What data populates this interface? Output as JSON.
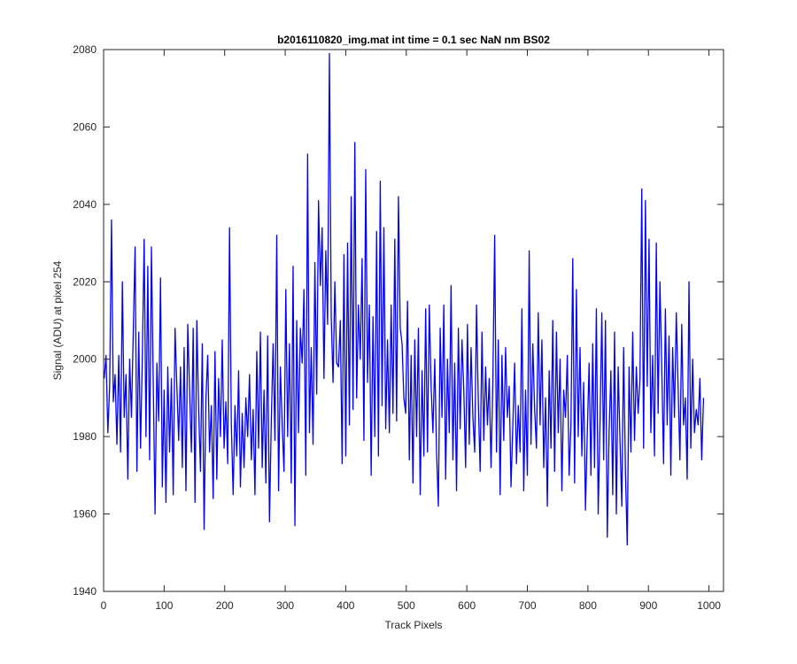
{
  "chart_data": {
    "type": "line",
    "title": "b2016110820_img.mat int time = 0.1 sec  NaN nm BS02",
    "xlabel": "Track Pixels",
    "ylabel": "Signal (ADU) at pixel 254",
    "xlim": [
      0,
      1024
    ],
    "ylim": [
      1940,
      2080
    ],
    "xticks": [
      0,
      100,
      200,
      300,
      400,
      500,
      600,
      700,
      800,
      900,
      1000
    ],
    "yticks": [
      1940,
      1960,
      1980,
      2000,
      2020,
      2040,
      2060,
      2080
    ],
    "grid": false,
    "legend": "none",
    "line_color": "#0000ff",
    "series": [
      {
        "x_start": 1,
        "x_step": 3,
        "values": [
          1995,
          2001,
          1981,
          1993,
          2036,
          1989,
          1996,
          1978,
          2001,
          1976,
          2020,
          1985,
          1996,
          1969,
          2000,
          1985,
          2007,
          2029,
          1971,
          2007,
          1977,
          2001,
          2031,
          1980,
          2024,
          1974,
          2029,
          1994,
          1960,
          1999,
          1984,
          2021,
          1967,
          1992,
          1963,
          1998,
          1976,
          1995,
          1965,
          2008,
          1993,
          1979,
          1998,
          1972,
          2003,
          1966,
          2009,
          1992,
          1976,
          2008,
          1963,
          2010,
          1987,
          1971,
          2004,
          1956,
          1990,
          2001,
          1976,
          1988,
          1964,
          2002,
          1969,
          1995,
          1980,
          2005,
          1977,
          1989,
          1973,
          2034,
          1983,
          1965,
          1988,
          1975,
          1997,
          1967,
          1986,
          1972,
          1990,
          1980,
          1996,
          1974,
          1987,
          1965,
          2002,
          1977,
          2007,
          1972,
          1992,
          1968,
          2006,
          1958,
          1984,
          2004,
          1979,
          2032,
          1966,
          1998,
          1983,
          1971,
          2018,
          1980,
          2004,
          1968,
          2024,
          1957,
          2010,
          1981,
          2008,
          1999,
          2018,
          1970,
          2053,
          1981,
          2003,
          1978,
          2025,
          1991,
          2041,
          2019,
          2034,
          1995,
          2028,
          2009,
          2079,
          2011,
          1994,
          2020,
          1999,
          1998,
          2010,
          1973,
          2027,
          1975,
          2030,
          1983,
          2042,
          1987,
          2056,
          1990,
          2014,
          2000,
          2026,
          1979,
          2049,
          1994,
          2014,
          1970,
          2011,
          1980,
          2033,
          1975,
          2046,
          1988,
          2034,
          1982,
          2005,
          1981,
          2014,
          1986,
          2031,
          1984,
          2042,
          2008,
          2004,
          1990,
          1986,
          2015,
          1974,
          2001,
          1968,
          2005,
          1980,
          2008,
          1965,
          1997,
          1975,
          2013,
          1976,
          2014,
          1993,
          1981,
          2000,
          1976,
          1962,
          2008,
          1985,
          2014,
          1969,
          2000,
          1981,
          2019,
          1974,
          1999,
          1966,
          2008,
          1982,
          2005,
          1992,
          1972,
          2009,
          1978,
          2003,
          1985,
          1976,
          2014,
          1989,
          1971,
          2007,
          1979,
          1998,
          1983,
          1995,
          1972,
          1994,
          2032,
          1976,
          2005,
          1965,
          2001,
          1979,
          2003,
          1985,
          1993,
          1967,
          1983,
          1999,
          1973,
          1988,
          1976,
          2013,
          1966,
          1992,
          1970,
          2028,
          1978,
          2004,
          1987,
          1977,
          2012,
          1983,
          2005,
          1972,
          1990,
          1962,
          1997,
          1977,
          2010,
          1971,
          2007,
          1981,
          2000,
          1966,
          1992,
          1985,
          2001,
          1970,
          1983,
          2026,
          1968,
          2018,
          1980,
          2003,
          1975,
          1994,
          1961,
          1981,
          1999,
          1970,
          2004,
          1972,
          2013,
          1960,
          1983,
          2012,
          1974,
          2010,
          1954,
          1981,
          1997,
          1965,
          2007,
          1960,
          1998,
          1979,
          1962,
          2003,
          1971,
          1952,
          1998,
          1976,
          2007,
          1979,
          1998,
          1986,
          1995,
          2044,
          1977,
          2041,
          1993,
          2031,
          1981,
          2001,
          1975,
          2030,
          1986,
          2020,
          1998,
          1973,
          2013,
          1983,
          2006,
          1970,
          2003,
          1985,
          2012,
          1993,
          1974,
          2009,
          1983,
          1990,
          1969,
          2020,
          1977,
          2000,
          1981,
          1987,
          1983,
          1995,
          1974,
          1990
        ]
      }
    ]
  }
}
